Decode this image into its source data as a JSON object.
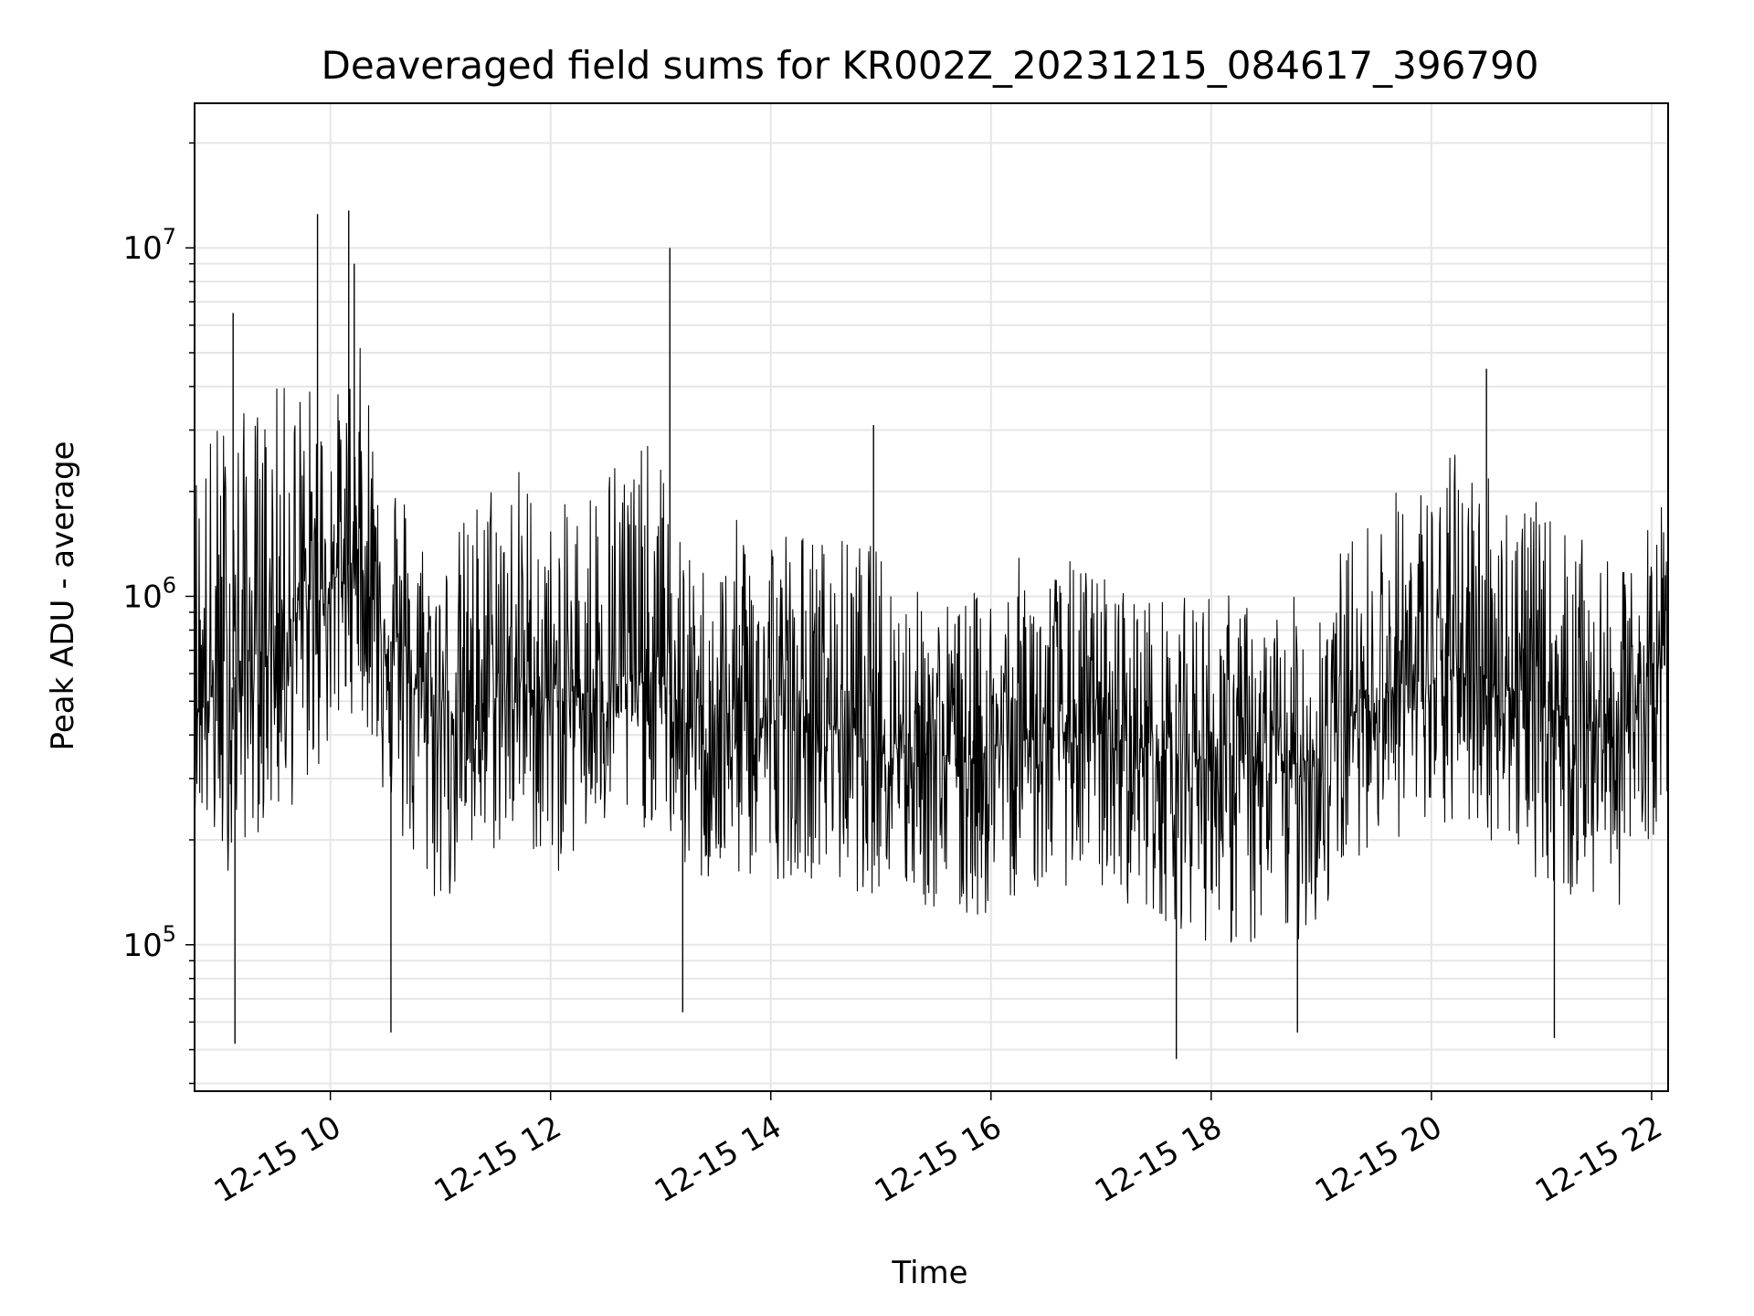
{
  "chart_data": {
    "type": "line",
    "title": "Deaveraged field sums for KR002Z_20231215_084617_396790",
    "xlabel": "Time",
    "ylabel": "Peak ADU - average",
    "x_axis": {
      "kind": "datetime",
      "range": [
        "2023-12-15 08:46",
        "2023-12-15 22:09"
      ],
      "ticks": [
        {
          "value": "2023-12-15 10:00",
          "label": "12-15 10"
        },
        {
          "value": "2023-12-15 12:00",
          "label": "12-15 12"
        },
        {
          "value": "2023-12-15 14:00",
          "label": "12-15 14"
        },
        {
          "value": "2023-12-15 16:00",
          "label": "12-15 16"
        },
        {
          "value": "2023-12-15 18:00",
          "label": "12-15 18"
        },
        {
          "value": "2023-12-15 20:00",
          "label": "12-15 20"
        },
        {
          "value": "2023-12-15 22:00",
          "label": "12-15 22"
        }
      ]
    },
    "y_axis": {
      "scale": "log",
      "range": [
        38000,
        26000000
      ],
      "ticks": [
        {
          "value": 100000,
          "base": "10",
          "exp": "5"
        },
        {
          "value": 1000000,
          "base": "10",
          "exp": "6"
        },
        {
          "value": 10000000,
          "base": "10",
          "exp": "7"
        }
      ]
    },
    "grid": true,
    "line_color": "#000000",
    "grid_color": "#e6e6e6",
    "series": [
      {
        "x": [
          "2023-12-15 08:46",
          "2023-12-15 09:00",
          "2023-12-15 09:15",
          "2023-12-15 09:30",
          "2023-12-15 09:45",
          "2023-12-15 10:00",
          "2023-12-15 10:15",
          "2023-12-15 10:30",
          "2023-12-15 10:45",
          "2023-12-15 11:00",
          "2023-12-15 11:15",
          "2023-12-15 11:30",
          "2023-12-15 11:45",
          "2023-12-15 12:00",
          "2023-12-15 12:15",
          "2023-12-15 12:30",
          "2023-12-15 12:45",
          "2023-12-15 13:00",
          "2023-12-15 13:15",
          "2023-12-15 13:30",
          "2023-12-15 13:45",
          "2023-12-15 14:00",
          "2023-12-15 14:15",
          "2023-12-15 14:30",
          "2023-12-15 14:45",
          "2023-12-15 15:00",
          "2023-12-15 15:15",
          "2023-12-15 15:30",
          "2023-12-15 15:45",
          "2023-12-15 16:00",
          "2023-12-15 16:15",
          "2023-12-15 16:30",
          "2023-12-15 16:45",
          "2023-12-15 17:00",
          "2023-12-15 17:15",
          "2023-12-15 17:30",
          "2023-12-15 17:45",
          "2023-12-15 18:00",
          "2023-12-15 18:15",
          "2023-12-15 18:30",
          "2023-12-15 18:45",
          "2023-12-15 19:00",
          "2023-12-15 19:15",
          "2023-12-15 19:30",
          "2023-12-15 19:45",
          "2023-12-15 20:00",
          "2023-12-15 20:15",
          "2023-12-15 20:30",
          "2023-12-15 20:45",
          "2023-12-15 21:00",
          "2023-12-15 21:15",
          "2023-12-15 21:30",
          "2023-12-15 21:45",
          "2023-12-15 22:00",
          "2023-12-15 22:09"
        ],
        "median": [
          500000,
          520000,
          650000,
          780000,
          900000,
          1100000,
          1300000,
          800000,
          550000,
          480000,
          460000,
          520000,
          560000,
          500000,
          520000,
          560000,
          560000,
          580000,
          420000,
          400000,
          420000,
          440000,
          450000,
          430000,
          420000,
          400000,
          380000,
          360000,
          350000,
          360000,
          390000,
          400000,
          410000,
          400000,
          380000,
          360000,
          350000,
          340000,
          330000,
          320000,
          330000,
          350000,
          450000,
          520000,
          560000,
          560000,
          600000,
          580000,
          540000,
          480000,
          460000,
          420000,
          400000,
          600000,
          650000
        ],
        "low": [
          250000,
          150000,
          200000,
          220000,
          260000,
          350000,
          500000,
          250000,
          150000,
          120000,
          150000,
          180000,
          200000,
          150000,
          180000,
          200000,
          210000,
          220000,
          150000,
          140000,
          150000,
          150000,
          160000,
          150000,
          140000,
          140000,
          130000,
          120000,
          110000,
          120000,
          140000,
          140000,
          150000,
          140000,
          130000,
          120000,
          110000,
          100000,
          95000,
          90000,
          100000,
          110000,
          170000,
          200000,
          200000,
          180000,
          220000,
          200000,
          180000,
          150000,
          130000,
          130000,
          130000,
          200000,
          250000
        ],
        "high": [
          2800000,
          3500000,
          3500000,
          4000000,
          4500000,
          3500000,
          5500000,
          3200000,
          1800000,
          1300000,
          1800000,
          2500000,
          2500000,
          1700000,
          2000000,
          2800000,
          3000000,
          2500000,
          1300000,
          1300000,
          1800000,
          1800000,
          1600000,
          1500000,
          1500000,
          1400000,
          1100000,
          1000000,
          1000000,
          1100000,
          1300000,
          1200000,
          1300000,
          1200000,
          1100000,
          1000000,
          1000000,
          1100000,
          1000000,
          900000,
          1000000,
          1200000,
          1500000,
          1800000,
          2200000,
          2200000,
          2800000,
          2500000,
          2200000,
          1800000,
          1600000,
          1300000,
          1200000,
          1700000,
          2200000
        ],
        "spikes": [
          {
            "x": "2023-12-15 09:07",
            "y": 6500000
          },
          {
            "x": "2023-12-15 09:53",
            "y": 12500000
          },
          {
            "x": "2023-12-15 10:10",
            "y": 12800000
          },
          {
            "x": "2023-12-15 10:13",
            "y": 9000000
          },
          {
            "x": "2023-12-15 13:05",
            "y": 10000000
          },
          {
            "x": "2023-12-15 14:56",
            "y": 3100000
          },
          {
            "x": "2023-12-15 20:30",
            "y": 4500000
          },
          {
            "x": "2023-12-15 09:08",
            "y": 52000
          },
          {
            "x": "2023-12-15 10:33",
            "y": 56000
          },
          {
            "x": "2023-12-15 13:12",
            "y": 64000
          },
          {
            "x": "2023-12-15 17:41",
            "y": 47000
          },
          {
            "x": "2023-12-15 18:47",
            "y": 56000
          },
          {
            "x": "2023-12-15 21:07",
            "y": 54000
          }
        ]
      }
    ]
  }
}
